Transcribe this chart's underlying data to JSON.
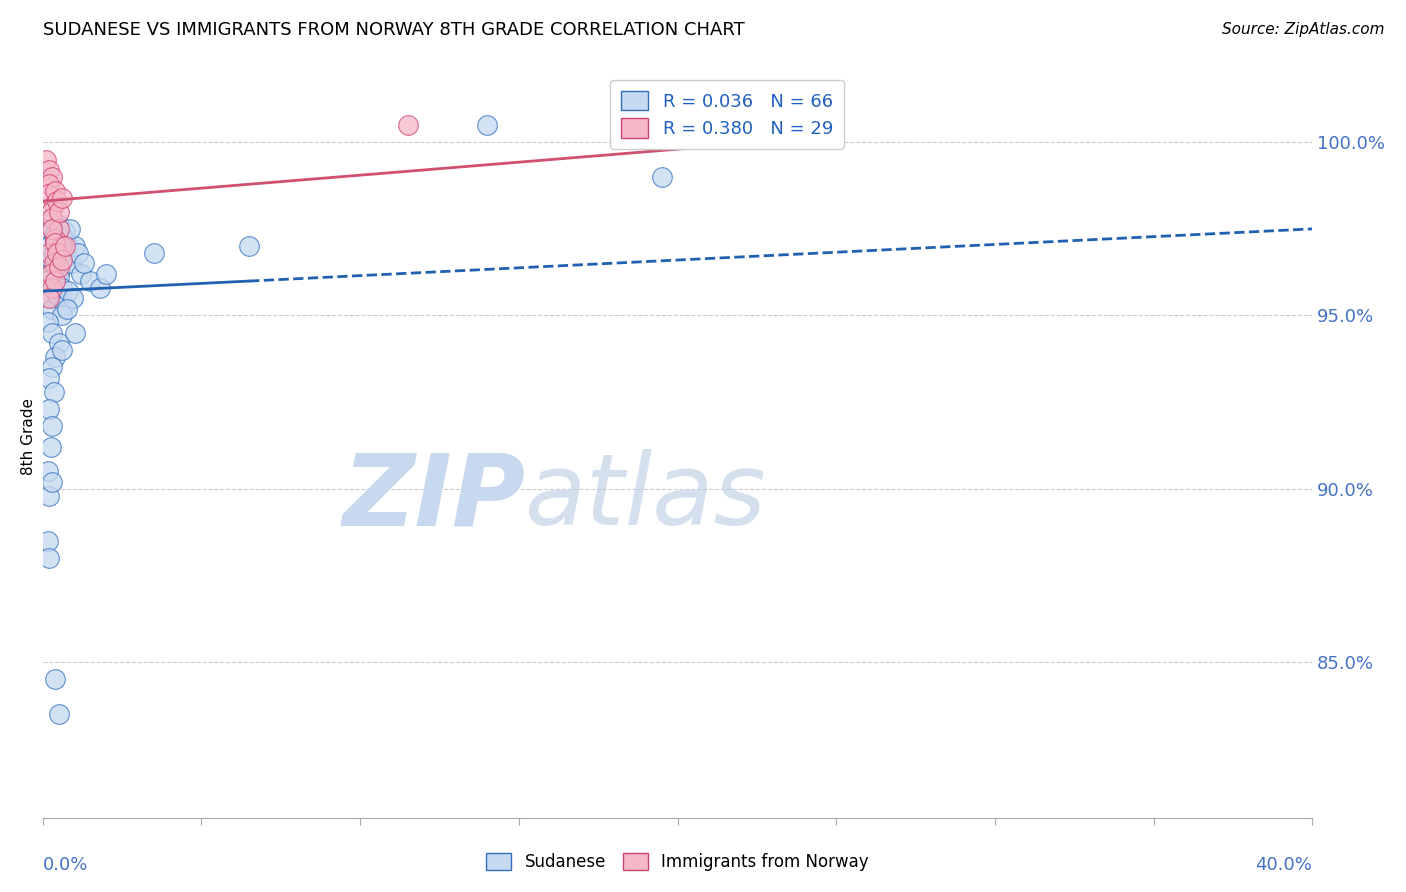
{
  "title": "SUDANESE VS IMMIGRANTS FROM NORWAY 8TH GRADE CORRELATION CHART",
  "source": "Source: ZipAtlas.com",
  "ylabel": "8th Grade",
  "ylabel_ticks": [
    85.0,
    90.0,
    95.0,
    100.0
  ],
  "x_min": 0.0,
  "x_max": 40.0,
  "y_min": 80.5,
  "y_max": 102.5,
  "blue_fill": "#c5d9f0",
  "blue_edge": "#3070c0",
  "pink_fill": "#f5b8c8",
  "pink_edge": "#d04070",
  "blue_line_color": "#2060b0",
  "pink_line_color": "#d05070",
  "R_blue": 0.036,
  "N_blue": 66,
  "R_pink": 0.38,
  "N_pink": 29,
  "legend_text_color": "#2060c0",
  "grid_color": "#cccccc",
  "blue_line_intercept": 95.7,
  "blue_line_slope": 0.045,
  "blue_solid_end_x": 6.5,
  "pink_line_intercept": 98.3,
  "pink_line_slope": 0.075,
  "pink_solid_end_x": 23.0,
  "blue_points": [
    [
      0.15,
      97.5
    ],
    [
      0.25,
      97.8
    ],
    [
      0.35,
      97.3
    ],
    [
      0.2,
      97.0
    ],
    [
      0.4,
      97.2
    ],
    [
      0.5,
      97.6
    ],
    [
      0.6,
      97.1
    ],
    [
      0.7,
      97.4
    ],
    [
      0.45,
      96.8
    ],
    [
      0.3,
      96.5
    ],
    [
      0.2,
      96.2
    ],
    [
      0.4,
      96.0
    ],
    [
      0.55,
      96.3
    ],
    [
      0.65,
      96.6
    ],
    [
      0.35,
      96.8
    ],
    [
      0.5,
      96.1
    ],
    [
      0.6,
      95.8
    ],
    [
      0.25,
      95.5
    ],
    [
      0.3,
      95.2
    ],
    [
      0.45,
      95.6
    ],
    [
      0.7,
      95.3
    ],
    [
      0.8,
      95.7
    ],
    [
      0.6,
      95.0
    ],
    [
      0.2,
      95.9
    ],
    [
      0.4,
      96.4
    ],
    [
      0.15,
      94.8
    ],
    [
      0.3,
      94.5
    ],
    [
      0.5,
      94.2
    ],
    [
      0.4,
      93.8
    ],
    [
      0.3,
      93.5
    ],
    [
      0.2,
      93.2
    ],
    [
      0.35,
      92.8
    ],
    [
      0.2,
      92.3
    ],
    [
      0.3,
      91.8
    ],
    [
      0.25,
      91.2
    ],
    [
      0.15,
      90.5
    ],
    [
      0.2,
      89.8
    ],
    [
      0.15,
      88.5
    ],
    [
      0.1,
      96.0
    ],
    [
      0.55,
      96.9
    ],
    [
      0.8,
      97.0
    ],
    [
      0.7,
      96.7
    ],
    [
      0.6,
      97.3
    ],
    [
      0.45,
      97.1
    ],
    [
      0.9,
      96.5
    ],
    [
      1.0,
      97.0
    ],
    [
      0.85,
      97.5
    ],
    [
      1.1,
      96.8
    ],
    [
      1.2,
      96.2
    ],
    [
      0.95,
      95.5
    ],
    [
      1.5,
      96.0
    ],
    [
      1.8,
      95.8
    ],
    [
      2.0,
      96.2
    ],
    [
      1.3,
      96.5
    ],
    [
      0.75,
      95.2
    ],
    [
      6.5,
      97.0
    ],
    [
      14.0,
      100.5
    ],
    [
      19.5,
      99.0
    ],
    [
      21.0,
      100.5
    ],
    [
      0.4,
      84.5
    ],
    [
      0.5,
      83.5
    ],
    [
      3.5,
      96.8
    ],
    [
      0.3,
      90.2
    ],
    [
      0.2,
      88.0
    ],
    [
      1.0,
      94.5
    ],
    [
      0.6,
      94.0
    ]
  ],
  "pink_points": [
    [
      0.1,
      99.5
    ],
    [
      0.2,
      99.2
    ],
    [
      0.3,
      99.0
    ],
    [
      0.2,
      98.8
    ],
    [
      0.15,
      98.5
    ],
    [
      0.35,
      98.2
    ],
    [
      0.4,
      98.6
    ],
    [
      0.25,
      98.0
    ],
    [
      0.3,
      97.8
    ],
    [
      0.45,
      98.3
    ],
    [
      0.5,
      97.5
    ],
    [
      0.4,
      97.2
    ],
    [
      0.6,
      97.0
    ],
    [
      0.2,
      96.8
    ],
    [
      0.3,
      97.5
    ],
    [
      0.5,
      98.0
    ],
    [
      0.6,
      98.4
    ],
    [
      0.35,
      96.5
    ],
    [
      0.4,
      97.1
    ],
    [
      0.25,
      96.2
    ],
    [
      0.45,
      96.8
    ],
    [
      0.3,
      95.8
    ],
    [
      0.2,
      95.5
    ],
    [
      0.4,
      96.0
    ],
    [
      0.5,
      96.4
    ],
    [
      0.6,
      96.6
    ],
    [
      11.5,
      100.5
    ],
    [
      22.0,
      100.5
    ],
    [
      0.7,
      97.0
    ]
  ]
}
